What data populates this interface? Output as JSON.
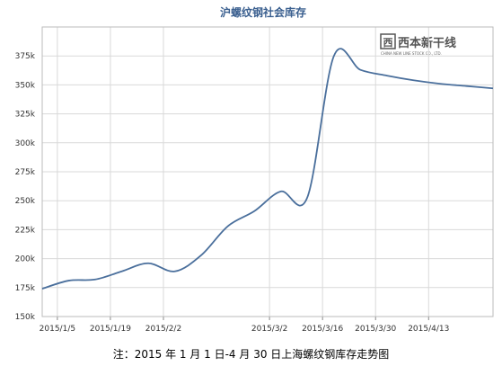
{
  "caption": "注：2015 年 1 月 1 日-4 月 30 日上海螺纹钢库存走势图",
  "logo": {
    "text": "西本新干线",
    "sub": "CHINA NEW LINE STOCK CO., LTD."
  },
  "chart_data": {
    "type": "line",
    "title": "沪螺纹钢社会库存",
    "xlabel": "",
    "ylabel": "",
    "ylim": [
      150000,
      400000
    ],
    "yticks": [
      150000,
      175000,
      200000,
      225000,
      250000,
      275000,
      300000,
      325000,
      350000,
      375000
    ],
    "ytick_labels": [
      "150k",
      "175k",
      "200k",
      "225k",
      "250k",
      "275k",
      "300k",
      "325k",
      "350k",
      "375k"
    ],
    "xlim": [
      "2015-01-01",
      "2015-04-30"
    ],
    "xticks": [
      "2015-01-05",
      "2015-01-19",
      "2015-02-02",
      "2015-03-02",
      "2015-03-16",
      "2015-03-30",
      "2015-04-13"
    ],
    "xtick_labels": [
      "2015/1/5",
      "2015/1/19",
      "2015/2/2",
      "2015/3/2",
      "2015/3/16",
      "2015/3/30",
      "2015/4/13"
    ],
    "grid": true,
    "line_color": "#4a6f9c",
    "series": [
      {
        "x": [
          "2015-01-01",
          "2015-01-08",
          "2015-01-15",
          "2015-01-22",
          "2015-01-29",
          "2015-02-05",
          "2015-02-12",
          "2015-02-19",
          "2015-02-26",
          "2015-03-05",
          "2015-03-12",
          "2015-03-19",
          "2015-03-26",
          "2015-04-02",
          "2015-04-09",
          "2015-04-16",
          "2015-04-23",
          "2015-04-30"
        ],
        "values": [
          174000,
          181000,
          182000,
          189000,
          196000,
          189000,
          203000,
          228000,
          241000,
          258000,
          253000,
          375000,
          363000,
          358000,
          354000,
          351000,
          349000,
          347000
        ]
      }
    ]
  }
}
